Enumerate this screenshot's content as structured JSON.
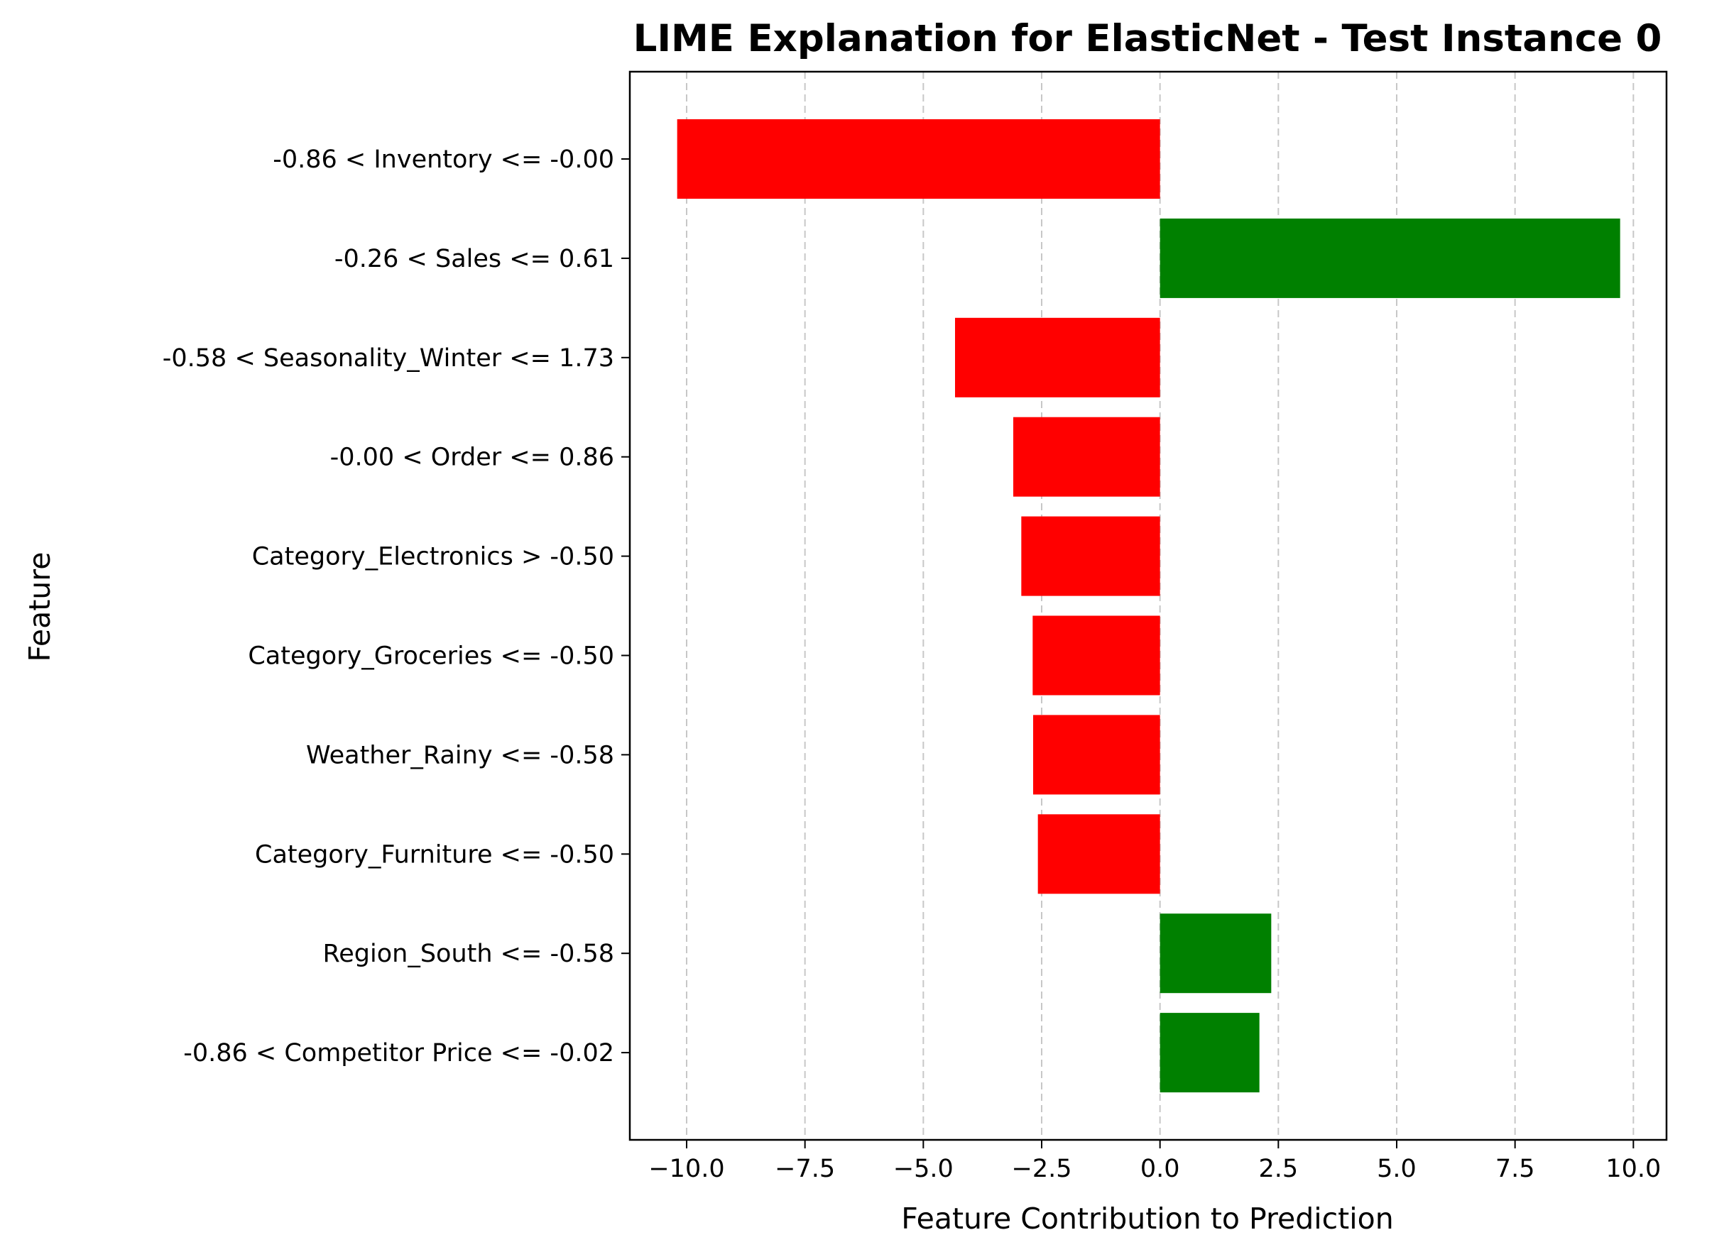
{
  "chart_data": {
    "type": "bar",
    "orientation": "horizontal",
    "title": "LIME Explanation for ElasticNet - Test Instance 0",
    "xlabel": "Feature Contribution to Prediction",
    "ylabel": "Feature",
    "xlim": [
      -11.2,
      10.7
    ],
    "x_ticks": [
      -10.0,
      -7.5,
      -5.0,
      -2.5,
      0.0,
      2.5,
      5.0,
      7.5,
      10.0
    ],
    "x_tick_labels": [
      "−10.0",
      "−7.5",
      "−5.0",
      "−2.5",
      "0.0",
      "2.5",
      "5.0",
      "7.5",
      "10.0"
    ],
    "grid": {
      "x": true,
      "y": false,
      "style": "dashed"
    },
    "categories": [
      "-0.86 < Inventory <= -0.00",
      "-0.26 < Sales <= 0.61",
      "-0.58 < Seasonality_Winter <= 1.73",
      "-0.00 < Order <= 0.86",
      "Category_Electronics > -0.50",
      "Category_Groceries <= -0.50",
      "Weather_Rainy <= -0.58",
      "Category_Furniture <= -0.50",
      "Region_South <= -0.58",
      "-0.86 < Competitor Price <= -0.02"
    ],
    "values": [
      -10.2,
      9.72,
      -4.33,
      -3.1,
      -2.93,
      -2.69,
      -2.68,
      -2.58,
      2.35,
      2.1
    ],
    "colors": {
      "positive": "#008000",
      "negative": "#ff0000"
    }
  }
}
